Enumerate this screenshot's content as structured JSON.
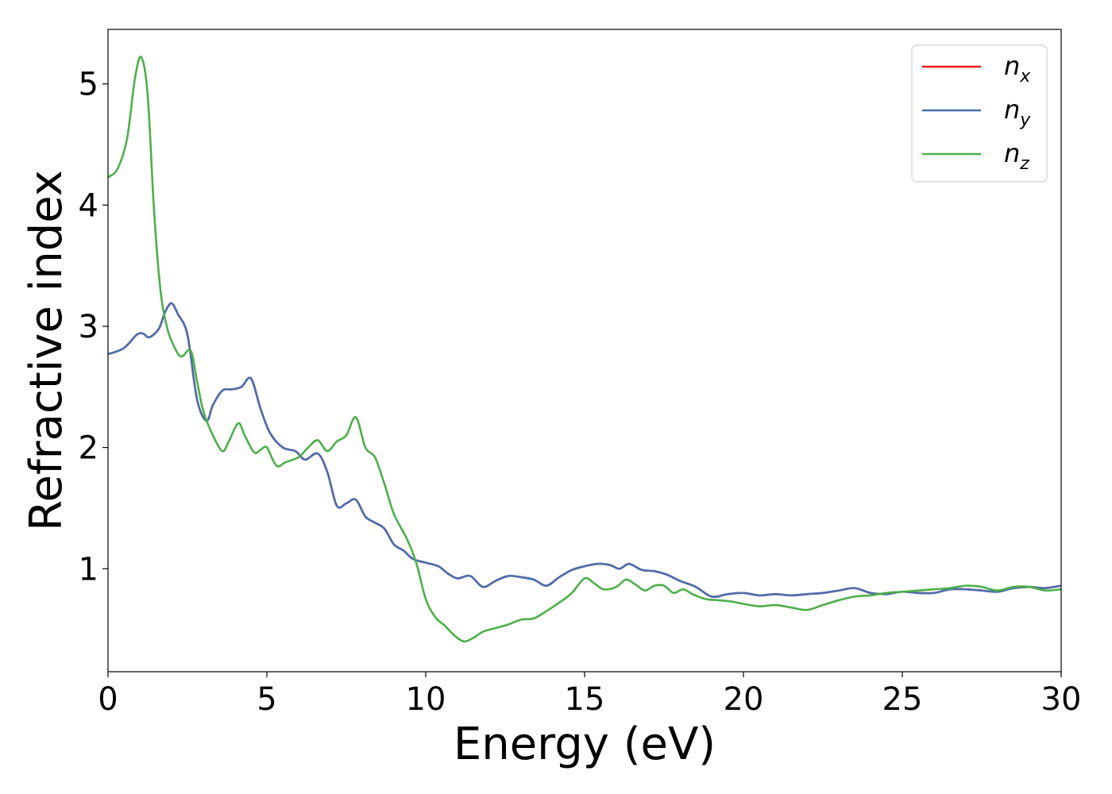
{
  "chart_data": {
    "type": "line",
    "title": "",
    "xlabel": "Energy (eV)",
    "ylabel": "Refractive index",
    "xlim": [
      0,
      30
    ],
    "ylim": [
      0.15,
      5.45
    ],
    "xticks": [
      0,
      5,
      10,
      15,
      20,
      25,
      30
    ],
    "yticks": [
      1,
      2,
      3,
      4,
      5
    ],
    "grid": false,
    "legend_position": "top-right",
    "series": [
      {
        "name": "n",
        "subscript": "x",
        "color": "#e41a1c",
        "x": [
          0,
          0.5,
          0.9,
          1.1,
          1.3,
          1.6,
          1.8,
          2.0,
          2.2,
          2.5,
          2.8,
          3.1,
          3.3,
          3.6,
          3.9,
          4.2,
          4.5,
          4.8,
          5.1,
          5.5,
          5.9,
          6.2,
          6.6,
          6.9,
          7.2,
          7.5,
          7.8,
          8.1,
          8.4,
          8.7,
          9.0,
          9.3,
          9.6,
          10.0,
          10.4,
          10.7,
          11.0,
          11.4,
          11.8,
          12.2,
          12.6,
          13.0,
          13.4,
          13.8,
          14.2,
          14.6,
          15.0,
          15.4,
          15.8,
          16.1,
          16.4,
          16.8,
          17.2,
          17.6,
          18.0,
          18.5,
          19.0,
          19.5,
          20.0,
          20.5,
          21.0,
          21.5,
          22.0,
          22.5,
          23.0,
          23.5,
          24.0,
          24.5,
          25.0,
          25.5,
          26.0,
          26.5,
          27.0,
          27.5,
          28.0,
          28.5,
          29.0,
          29.5,
          30.0
        ],
        "values": [
          2.77,
          2.82,
          2.93,
          2.94,
          2.91,
          2.98,
          3.12,
          3.19,
          3.1,
          2.93,
          2.4,
          2.22,
          2.35,
          2.47,
          2.48,
          2.5,
          2.57,
          2.32,
          2.12,
          2.0,
          1.97,
          1.9,
          1.95,
          1.8,
          1.52,
          1.54,
          1.57,
          1.43,
          1.38,
          1.33,
          1.2,
          1.15,
          1.08,
          1.05,
          1.02,
          0.96,
          0.92,
          0.94,
          0.85,
          0.9,
          0.94,
          0.93,
          0.91,
          0.86,
          0.93,
          0.99,
          1.02,
          1.04,
          1.03,
          1.0,
          1.04,
          0.99,
          0.98,
          0.95,
          0.9,
          0.85,
          0.77,
          0.79,
          0.8,
          0.78,
          0.79,
          0.78,
          0.79,
          0.8,
          0.82,
          0.84,
          0.8,
          0.79,
          0.81,
          0.8,
          0.8,
          0.83,
          0.83,
          0.82,
          0.81,
          0.84,
          0.85,
          0.84,
          0.86
        ]
      },
      {
        "name": "n",
        "subscript": "y",
        "color": "#4a6fad",
        "x": [
          0,
          0.5,
          0.9,
          1.1,
          1.3,
          1.6,
          1.8,
          2.0,
          2.2,
          2.5,
          2.8,
          3.1,
          3.3,
          3.6,
          3.9,
          4.2,
          4.5,
          4.8,
          5.1,
          5.5,
          5.9,
          6.2,
          6.6,
          6.9,
          7.2,
          7.5,
          7.8,
          8.1,
          8.4,
          8.7,
          9.0,
          9.3,
          9.6,
          10.0,
          10.4,
          10.7,
          11.0,
          11.4,
          11.8,
          12.2,
          12.6,
          13.0,
          13.4,
          13.8,
          14.2,
          14.6,
          15.0,
          15.4,
          15.8,
          16.1,
          16.4,
          16.8,
          17.2,
          17.6,
          18.0,
          18.5,
          19.0,
          19.5,
          20.0,
          20.5,
          21.0,
          21.5,
          22.0,
          22.5,
          23.0,
          23.5,
          24.0,
          24.5,
          25.0,
          25.5,
          26.0,
          26.5,
          27.0,
          27.5,
          28.0,
          28.5,
          29.0,
          29.5,
          30.0
        ],
        "values": [
          2.77,
          2.82,
          2.93,
          2.94,
          2.91,
          2.98,
          3.12,
          3.19,
          3.1,
          2.93,
          2.4,
          2.22,
          2.35,
          2.47,
          2.48,
          2.5,
          2.57,
          2.32,
          2.12,
          2.0,
          1.97,
          1.9,
          1.95,
          1.8,
          1.52,
          1.54,
          1.57,
          1.43,
          1.38,
          1.33,
          1.2,
          1.15,
          1.08,
          1.05,
          1.02,
          0.96,
          0.92,
          0.94,
          0.85,
          0.9,
          0.94,
          0.93,
          0.91,
          0.86,
          0.93,
          0.99,
          1.02,
          1.04,
          1.03,
          1.0,
          1.04,
          0.99,
          0.98,
          0.95,
          0.9,
          0.85,
          0.77,
          0.79,
          0.8,
          0.78,
          0.79,
          0.78,
          0.79,
          0.8,
          0.82,
          0.84,
          0.8,
          0.79,
          0.81,
          0.8,
          0.8,
          0.83,
          0.83,
          0.82,
          0.81,
          0.84,
          0.85,
          0.84,
          0.86
        ]
      },
      {
        "name": "n",
        "subscript": "z",
        "color": "#4daf4a",
        "x": [
          0,
          0.3,
          0.6,
          0.85,
          1.05,
          1.25,
          1.45,
          1.65,
          1.85,
          2.05,
          2.3,
          2.6,
          2.8,
          3.0,
          3.3,
          3.6,
          3.8,
          4.1,
          4.3,
          4.6,
          4.8,
          5.0,
          5.3,
          5.6,
          6.0,
          6.3,
          6.6,
          6.9,
          7.2,
          7.5,
          7.8,
          8.1,
          8.4,
          8.7,
          9.0,
          9.4,
          9.7,
          10.0,
          10.3,
          10.6,
          10.9,
          11.2,
          11.5,
          11.8,
          12.2,
          12.6,
          13.0,
          13.4,
          13.8,
          14.2,
          14.6,
          15.0,
          15.3,
          15.6,
          16.0,
          16.3,
          16.6,
          16.9,
          17.2,
          17.5,
          17.8,
          18.1,
          18.4,
          18.8,
          19.2,
          19.6,
          20.0,
          20.5,
          21.0,
          21.5,
          22.0,
          22.5,
          23.0,
          23.5,
          24.0,
          24.5,
          25.0,
          25.5,
          26.0,
          26.5,
          27.0,
          27.5,
          28.0,
          28.5,
          29.0,
          29.5,
          30.0
        ],
        "values": [
          4.23,
          4.3,
          4.55,
          5.05,
          5.22,
          4.9,
          3.95,
          3.3,
          3.0,
          2.85,
          2.75,
          2.8,
          2.55,
          2.3,
          2.1,
          1.97,
          2.05,
          2.2,
          2.1,
          1.96,
          1.98,
          2.0,
          1.85,
          1.88,
          1.92,
          2.0,
          2.06,
          1.97,
          2.05,
          2.1,
          2.25,
          2.0,
          1.92,
          1.7,
          1.45,
          1.25,
          1.05,
          0.75,
          0.6,
          0.53,
          0.45,
          0.4,
          0.43,
          0.48,
          0.51,
          0.54,
          0.58,
          0.59,
          0.65,
          0.72,
          0.8,
          0.92,
          0.88,
          0.83,
          0.85,
          0.91,
          0.87,
          0.82,
          0.86,
          0.86,
          0.8,
          0.83,
          0.79,
          0.75,
          0.74,
          0.73,
          0.71,
          0.69,
          0.7,
          0.68,
          0.66,
          0.7,
          0.74,
          0.77,
          0.78,
          0.8,
          0.81,
          0.82,
          0.83,
          0.84,
          0.86,
          0.85,
          0.82,
          0.85,
          0.85,
          0.82,
          0.83
        ]
      }
    ]
  }
}
